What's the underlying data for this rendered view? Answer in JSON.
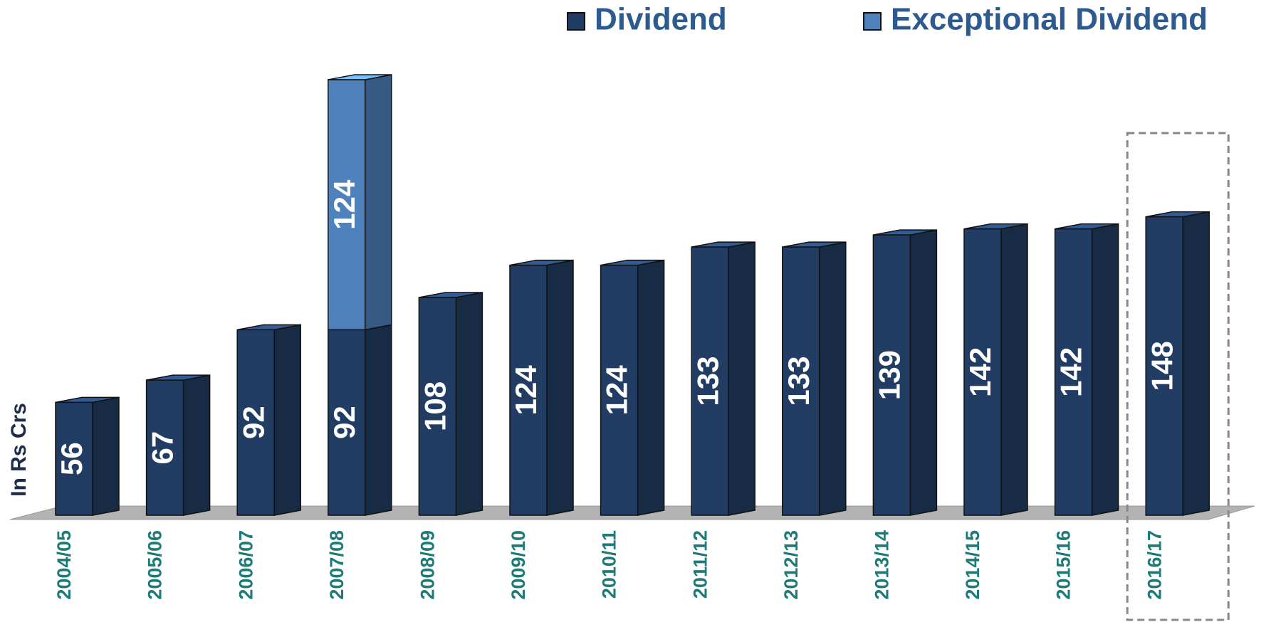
{
  "chart_data": {
    "type": "stacked_bar_3d",
    "y_axis_label": "In Rs Crs",
    "categories": [
      "2004/05",
      "2005/06",
      "2006/07",
      "2007/08",
      "2008/09",
      "2009/10",
      "2010/11",
      "2011/12",
      "2012/13",
      "2013/14",
      "2014/15",
      "2015/16",
      "2016/17"
    ],
    "series": [
      {
        "name": "Dividend",
        "color": "#223d63",
        "values": [
          56,
          67,
          92,
          92,
          108,
          124,
          124,
          133,
          133,
          139,
          142,
          142,
          148
        ]
      },
      {
        "name": "Exceptional Dividend",
        "color": "#4f81bd",
        "values": [
          null,
          null,
          null,
          124,
          null,
          null,
          null,
          null,
          null,
          null,
          null,
          null,
          null
        ]
      }
    ],
    "legend": "top-right"
  }
}
